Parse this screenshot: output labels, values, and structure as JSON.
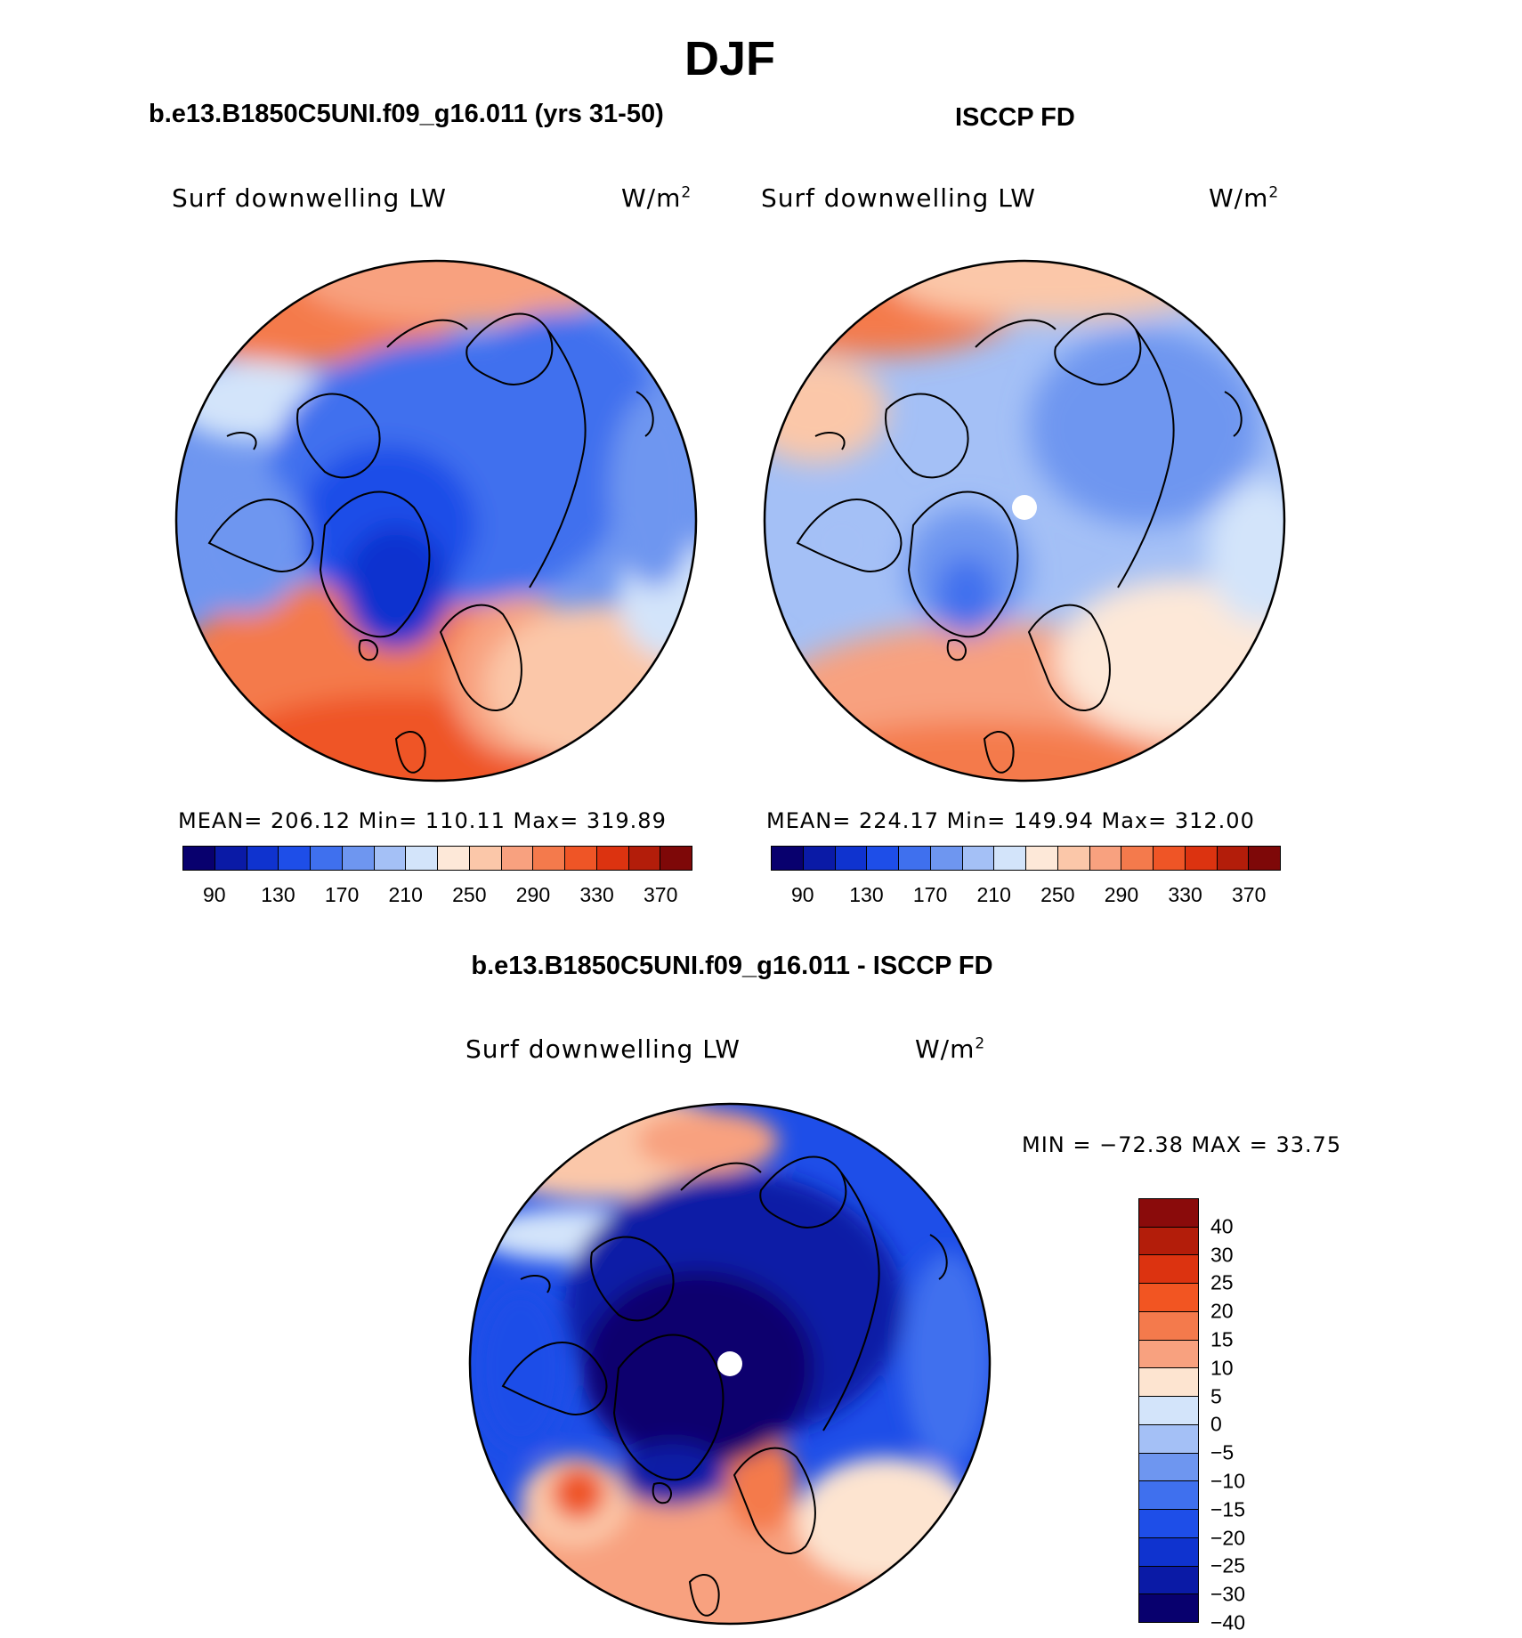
{
  "title": "DJF",
  "panels": [
    {
      "title": "b.e13.B1850C5UNI.f09_g16.011 (yrs 31-50)",
      "variable": "Surf downwelling LW",
      "units": "W/m",
      "units_sup": "2",
      "stats": "MEAN= 206.12   Min= 110.11   Max= 319.89"
    },
    {
      "title": "ISCCP FD",
      "variable": "Surf downwelling LW",
      "units": "W/m",
      "units_sup": "2",
      "stats": "MEAN= 224.17   Min= 149.94   Max= 312.00"
    },
    {
      "title": "b.e13.B1850C5UNI.f09_g16.011 - ISCCP FD",
      "variable": "Surf downwelling LW",
      "units": "W/m",
      "units_sup": "2",
      "stats": "MIN = −72.38 MAX =   33.75"
    }
  ],
  "abs_colorbar": {
    "tick_labels": [
      "90",
      "130",
      "170",
      "210",
      "250",
      "290",
      "330",
      "370"
    ],
    "colors": [
      "#08006e",
      "#0a1aa6",
      "#0f33cf",
      "#1e4ee8",
      "#3f70ee",
      "#6e96f0",
      "#a4c0f6",
      "#d3e4fa",
      "#fde8d8",
      "#fbc7a9",
      "#f8a17f",
      "#f47a4c",
      "#ef5526",
      "#dc3310",
      "#b31d0a",
      "#7e0808"
    ]
  },
  "diff_colorbar": {
    "tick_labels": [
      "40",
      "30",
      "25",
      "20",
      "15",
      "10",
      "5",
      "0",
      "−5",
      "−10",
      "−15",
      "−20",
      "−25",
      "−30",
      "−40"
    ],
    "colors": [
      "#8a0b0b",
      "#b31d0a",
      "#dc3310",
      "#f25522",
      "#f47a4c",
      "#f8a17f",
      "#fde4d0",
      "#d3e4fa",
      "#a4c0f6",
      "#6e96f0",
      "#3f70ee",
      "#1e4ee8",
      "#0f33cf",
      "#0a1aa6",
      "#08006e"
    ]
  }
}
